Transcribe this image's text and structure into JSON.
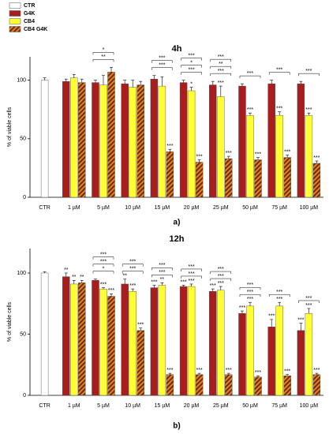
{
  "chart_data": [
    {
      "type": "bar",
      "title": "4h",
      "caption": "a)",
      "y_label": "% of viable cells",
      "categories": [
        "CTR",
        "1 µM",
        "5 µM",
        "10 µM",
        "15 µM",
        "20 µM",
        "25 µM",
        "50 µM",
        "75 µM",
        "100 µM"
      ],
      "series": [
        {
          "name": "CTR",
          "color": "#ffffff",
          "values": [
            100,
            null,
            null,
            null,
            null,
            null,
            null,
            null,
            null,
            null
          ],
          "errors": [
            2,
            null,
            null,
            null,
            null,
            null,
            null,
            null,
            null,
            null
          ],
          "sig": [
            null,
            null,
            null,
            null,
            null,
            null,
            null,
            null,
            null,
            null
          ]
        },
        {
          "name": "G4K",
          "color": "#a81e1e",
          "values": [
            null,
            99,
            98,
            97,
            101,
            98,
            96,
            95,
            97,
            97
          ],
          "errors": [
            null,
            2,
            2,
            3,
            3,
            2,
            3,
            2,
            3,
            2
          ],
          "sig": [
            null,
            null,
            null,
            null,
            null,
            null,
            null,
            null,
            null,
            null
          ]
        },
        {
          "name": "CB4",
          "color": "#ffff33",
          "values": [
            null,
            102,
            96,
            94,
            95,
            91,
            86,
            70,
            70,
            70
          ],
          "errors": [
            null,
            3,
            8,
            6,
            8,
            3,
            9,
            2,
            3,
            2
          ],
          "sig": [
            null,
            null,
            null,
            null,
            null,
            "*",
            "***",
            "***",
            "***",
            "***"
          ]
        },
        {
          "name": "CB4 G4K",
          "color": "#d98a1f",
          "pattern": "hatch",
          "values": [
            null,
            98,
            107,
            96,
            39,
            30,
            33,
            32,
            34,
            29
          ],
          "errors": [
            null,
            3,
            4,
            3,
            2,
            2,
            2,
            2,
            2,
            2
          ],
          "sig": [
            null,
            null,
            null,
            null,
            "***",
            "***",
            "***",
            "***",
            "***",
            "***"
          ]
        }
      ],
      "brackets": [
        [],
        [],
        [
          "**",
          "*"
        ],
        [],
        [
          "***",
          "***"
        ],
        [
          "***",
          "*",
          "***"
        ],
        [
          "***",
          "**",
          "***"
        ],
        [
          "***"
        ],
        [
          "***"
        ],
        [
          "***"
        ]
      ],
      "ylim": [
        0,
        120
      ],
      "yticks": [
        0,
        50,
        100
      ]
    },
    {
      "type": "bar",
      "title": "12h",
      "caption": "b)",
      "y_label": "% of viable cells",
      "categories": [
        "CTR",
        "1 µM",
        "5 µM",
        "10 µM",
        "15 µM",
        "20 µM",
        "25 µM",
        "50 µM",
        "75 µM",
        "100 µM"
      ],
      "series": [
        {
          "name": "CTR",
          "color": "#ffffff",
          "values": [
            100,
            null,
            null,
            null,
            null,
            null,
            null,
            null,
            null,
            null
          ],
          "errors": [
            1,
            null,
            null,
            null,
            null,
            null,
            null,
            null,
            null,
            null
          ],
          "sig": [
            null,
            null,
            null,
            null,
            null,
            null,
            null,
            null,
            null,
            null
          ]
        },
        {
          "name": "G4K",
          "color": "#a81e1e",
          "values": [
            null,
            97,
            94,
            91,
            88,
            89,
            85,
            67,
            56,
            53
          ],
          "errors": [
            null,
            3,
            1,
            4,
            2,
            1,
            2,
            2,
            6,
            6
          ],
          "sig": [
            null,
            "**",
            null,
            "**",
            "***",
            "***",
            "***",
            "***",
            "***",
            "***"
          ]
        },
        {
          "name": "CB4",
          "color": "#ffff33",
          "values": [
            null,
            91,
            87,
            85,
            90,
            89,
            86,
            73,
            73,
            67
          ],
          "errors": [
            null,
            3,
            1,
            2,
            2,
            2,
            3,
            3,
            3,
            4
          ],
          "sig": [
            null,
            "**",
            "***",
            "***",
            "**",
            "***",
            "***",
            "***",
            "***",
            "***"
          ]
        },
        {
          "name": "CB4 G4K",
          "color": "#d98a1f",
          "pattern": "hatch",
          "values": [
            null,
            92,
            81,
            53,
            17,
            17,
            17,
            15,
            16,
            17
          ],
          "errors": [
            null,
            2,
            2,
            2,
            1,
            1,
            1,
            1,
            1,
            1
          ],
          "sig": [
            null,
            "**",
            "***",
            "***",
            "***",
            "***",
            "***",
            "***",
            "***",
            "***"
          ]
        }
      ],
      "brackets": [
        [],
        [],
        [
          "*",
          "***",
          "***"
        ],
        [
          "***",
          "***"
        ],
        [
          "***",
          "***"
        ],
        [
          "***",
          "***"
        ],
        [
          "***",
          "***"
        ],
        [
          "***",
          "***"
        ],
        [
          "***"
        ],
        [
          "***"
        ]
      ],
      "ylim": [
        0,
        120
      ],
      "yticks": [
        0,
        50,
        100
      ]
    }
  ]
}
